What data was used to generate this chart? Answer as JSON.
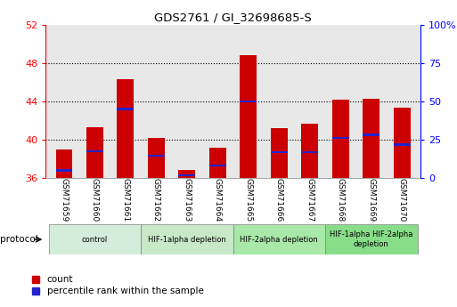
{
  "title": "GDS2761 / GI_32698685-S",
  "samples": [
    "GSM71659",
    "GSM71660",
    "GSM71661",
    "GSM71662",
    "GSM71663",
    "GSM71664",
    "GSM71665",
    "GSM71666",
    "GSM71667",
    "GSM71668",
    "GSM71669",
    "GSM71670"
  ],
  "bar_heights": [
    39.0,
    41.3,
    46.3,
    40.2,
    36.8,
    39.2,
    48.8,
    41.2,
    41.7,
    44.2,
    44.3,
    43.3
  ],
  "blue_positions": [
    36.8,
    38.8,
    43.2,
    38.3,
    36.3,
    37.3,
    44.0,
    38.7,
    38.7,
    40.2,
    40.5,
    39.5
  ],
  "ylim_left": [
    36,
    52
  ],
  "ylim_right": [
    0,
    100
  ],
  "yticks_left": [
    36,
    40,
    44,
    48,
    52
  ],
  "yticks_right": [
    0,
    25,
    50,
    75,
    100
  ],
  "ytick_labels_left": [
    "36",
    "40",
    "44",
    "48",
    "52"
  ],
  "ytick_labels_right": [
    "0",
    "25",
    "50",
    "75",
    "100%"
  ],
  "bar_color": "#cc0000",
  "blue_color": "#2222cc",
  "bar_width": 0.55,
  "protocol_groups": [
    {
      "label": "control",
      "start": 0,
      "end": 2,
      "color": "#d4edda"
    },
    {
      "label": "HIF-1alpha depletion",
      "start": 3,
      "end": 5,
      "color": "#c8e8c8"
    },
    {
      "label": "HIF-2alpha depletion",
      "start": 6,
      "end": 8,
      "color": "#a8e8a8"
    },
    {
      "label": "HIF-1alpha HIF-2alpha\ndepletion",
      "start": 9,
      "end": 11,
      "color": "#88dd88"
    }
  ],
  "protocol_label": "protocol",
  "legend_count_label": "count",
  "legend_percentile_label": "percentile rank within the sample",
  "grid_color": "black",
  "background_color": "#e8e8e8",
  "plot_bg_color": "#ffffff"
}
